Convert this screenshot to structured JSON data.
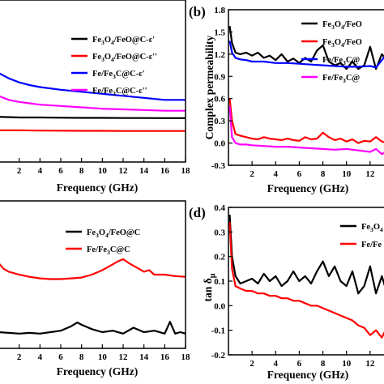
{
  "chart_data": [
    {
      "panel": "a",
      "type": "line",
      "xlabel": "Frequency (GHz)",
      "ylabel": "",
      "xlim": [
        0,
        18
      ],
      "ylim": [
        0,
        12
      ],
      "xticks": [
        2,
        4,
        6,
        8,
        10,
        12,
        14,
        16,
        18
      ],
      "yticks": [],
      "legend_position": "top-right",
      "series": [
        {
          "name": "Fe3O4/FeO@C-ε'",
          "legend": [
            [
              "Fe",
              "n"
            ],
            [
              "3",
              "s"
            ],
            [
              "O",
              "n"
            ],
            [
              "4",
              "s"
            ],
            [
              "/FeO@C-ε'",
              "n"
            ]
          ],
          "color": "#000000",
          "x": [
            0,
            2,
            4,
            6,
            8,
            10,
            12,
            14,
            16,
            18
          ],
          "y": [
            3.35,
            3.3,
            3.3,
            3.28,
            3.27,
            3.27,
            3.26,
            3.26,
            3.25,
            3.25
          ]
        },
        {
          "name": "Fe3O4/FeO@C-ε''",
          "legend": [
            [
              "Fe",
              "n"
            ],
            [
              "3",
              "s"
            ],
            [
              "O",
              "n"
            ],
            [
              "4",
              "s"
            ],
            [
              "/FeO@C-ε''",
              "n"
            ]
          ],
          "color": "#ff0000",
          "x": [
            0,
            2,
            4,
            6,
            8,
            10,
            12,
            14,
            16,
            18
          ],
          "y": [
            2.35,
            2.35,
            2.33,
            2.32,
            2.31,
            2.31,
            2.3,
            2.3,
            2.3,
            2.3
          ]
        },
        {
          "name": "Fe/Fe3C@C-ε'",
          "legend": [
            [
              "Fe/Fe",
              "n"
            ],
            [
              "3",
              "s"
            ],
            [
              "C@C-ε'",
              "n"
            ]
          ],
          "color": "#0000ff",
          "x": [
            0,
            1,
            2,
            3,
            4,
            6,
            8,
            10,
            12,
            14,
            16,
            18
          ],
          "y": [
            6.6,
            6.2,
            5.9,
            5.7,
            5.55,
            5.35,
            5.2,
            5.05,
            4.9,
            4.75,
            4.6,
            4.6
          ]
        },
        {
          "name": "Fe/Fe3C@C-ε''",
          "legend": [
            [
              "Fe/Fe",
              "n"
            ],
            [
              "3",
              "s"
            ],
            [
              "C@C-ε''",
              "n"
            ]
          ],
          "color": "#ff00ff",
          "x": [
            0,
            1,
            2,
            3,
            4,
            6,
            8,
            10,
            12,
            14,
            16,
            18
          ],
          "y": [
            4.9,
            4.6,
            4.45,
            4.35,
            4.25,
            4.15,
            4.05,
            3.95,
            3.9,
            3.85,
            3.8,
            3.8
          ]
        }
      ]
    },
    {
      "panel": "b",
      "letter": "(b)",
      "type": "line",
      "xlabel": "Frequency (GHz)",
      "ylabel": "Complex permeability",
      "xlim": [
        0,
        14
      ],
      "ylim": [
        -0.3,
        1.8
      ],
      "xticks": [
        2,
        4,
        6,
        8,
        10,
        12
      ],
      "yticks": [
        -0.3,
        0.0,
        0.3,
        0.6,
        0.9,
        1.2,
        1.5,
        1.8
      ],
      "ytick_labels": [
        "-0.3",
        "0.0",
        "0.3",
        "0.6",
        "0.9",
        "1.2",
        "1.5",
        "1.8"
      ],
      "legend_position": "top-right",
      "series": [
        {
          "name": "Fe3O4/FeO",
          "legend": [
            [
              "Fe",
              "n"
            ],
            [
              "3",
              "s"
            ],
            [
              "O",
              "n"
            ],
            [
              "4",
              "s"
            ],
            [
              "/FeO",
              "n"
            ]
          ],
          "color": "#000000",
          "x": [
            0.1,
            0.3,
            0.6,
            1,
            1.5,
            2,
            2.5,
            3,
            3.5,
            4,
            4.5,
            5,
            5.5,
            6,
            6.5,
            7,
            7.5,
            8,
            8.5,
            9,
            9.5,
            10,
            10.5,
            11,
            11.5,
            12,
            12.5,
            13,
            13.5,
            14
          ],
          "y": [
            1.58,
            1.35,
            1.22,
            1.2,
            1.22,
            1.18,
            1.22,
            1.15,
            1.18,
            1.12,
            1.2,
            1.1,
            1.14,
            1.08,
            1.15,
            1.1,
            1.25,
            1.32,
            1.1,
            1.05,
            1.08,
            1.0,
            1.1,
            1.0,
            1.05,
            1.3,
            1.0,
            1.2,
            1.1,
            1.05
          ]
        },
        {
          "name": "Fe3O4/FeO",
          "legend": [
            [
              "Fe",
              "n"
            ],
            [
              "3",
              "s"
            ],
            [
              "O",
              "n"
            ],
            [
              "4",
              "s"
            ],
            [
              "/FeO",
              "n"
            ]
          ],
          "color": "#ff0000",
          "x": [
            0.1,
            0.3,
            0.6,
            1,
            1.5,
            2,
            2.5,
            3,
            3.5,
            4,
            4.5,
            5,
            5.5,
            6,
            6.5,
            7,
            7.5,
            8,
            8.5,
            9,
            9.5,
            10,
            10.5,
            11,
            11.5,
            12,
            12.5,
            13,
            13.5,
            14
          ],
          "y": [
            0.6,
            0.3,
            0.12,
            0.1,
            0.08,
            0.06,
            0.05,
            0.08,
            0.06,
            0.05,
            0.04,
            0.06,
            0.04,
            0.03,
            0.08,
            0.05,
            0.06,
            0.14,
            0.08,
            0.04,
            0.06,
            0.02,
            0.05,
            0.0,
            0.03,
            0.02,
            0.08,
            0.02,
            0.0,
            0.02
          ]
        },
        {
          "name": "Fe/Fe3C@",
          "legend": [
            [
              "Fe/Fe",
              "n"
            ],
            [
              "3",
              "s"
            ],
            [
              "C@",
              "n"
            ]
          ],
          "color": "#0000ff",
          "x": [
            0.1,
            0.3,
            0.6,
            1,
            1.5,
            2,
            3,
            4,
            5,
            6,
            7,
            8,
            9,
            10,
            11,
            12,
            12.5,
            13,
            13.5,
            14
          ],
          "y": [
            1.38,
            1.22,
            1.15,
            1.13,
            1.12,
            1.1,
            1.1,
            1.08,
            1.08,
            1.07,
            1.06,
            1.05,
            1.04,
            1.03,
            1.03,
            1.04,
            1.02,
            1.12,
            1.22,
            1.25
          ]
        },
        {
          "name": "Fe/Fe3C@",
          "legend": [
            [
              "Fe/Fe",
              "n"
            ],
            [
              "3",
              "s"
            ],
            [
              "C@",
              "n"
            ]
          ],
          "color": "#ff00ff",
          "x": [
            0.1,
            0.3,
            0.6,
            1,
            1.5,
            2,
            3,
            4,
            5,
            6,
            7,
            8,
            9,
            10,
            11,
            12,
            12.5,
            13,
            13.5,
            14
          ],
          "y": [
            0.5,
            0.08,
            0.0,
            -0.02,
            -0.02,
            -0.03,
            -0.04,
            -0.05,
            -0.05,
            -0.06,
            -0.07,
            -0.08,
            -0.09,
            -0.08,
            -0.1,
            -0.12,
            -0.08,
            -0.15,
            -0.1,
            -0.12
          ]
        }
      ]
    },
    {
      "panel": "c",
      "type": "line",
      "xlabel": "Frequency (GHz)",
      "ylabel": "",
      "xlim": [
        0,
        18
      ],
      "ylim": [
        0,
        10
      ],
      "xticks": [
        2,
        4,
        6,
        8,
        10,
        12,
        14,
        16,
        18
      ],
      "yticks": [],
      "legend_position": "top-right",
      "series": [
        {
          "name": "Fe3O4/FeO@C",
          "legend": [
            [
              "Fe",
              "n"
            ],
            [
              "3",
              "s"
            ],
            [
              "O",
              "n"
            ],
            [
              "4",
              "s"
            ],
            [
              "/FeO@C",
              "n"
            ]
          ],
          "color": "#000000",
          "x": [
            0,
            1,
            2,
            3,
            4,
            5,
            6,
            7,
            7.6,
            8,
            9,
            10,
            11,
            12,
            13,
            14,
            15,
            16,
            16.5,
            17,
            17.5,
            18
          ],
          "y": [
            1.1,
            1.05,
            1.0,
            1.05,
            1.0,
            1.1,
            1.2,
            1.5,
            1.75,
            1.6,
            1.3,
            1.1,
            1.2,
            1.0,
            1.4,
            1.1,
            1.2,
            1.0,
            1.8,
            1.0,
            1.1,
            1.0
          ]
        },
        {
          "name": "Fe/Fe3C@C",
          "legend": [
            [
              "Fe/Fe",
              "n"
            ],
            [
              "3",
              "s"
            ],
            [
              "C@C",
              "n"
            ]
          ],
          "color": "#ff0000",
          "x": [
            0,
            0.5,
            1,
            2,
            3,
            4,
            5,
            6,
            7,
            8,
            9,
            10,
            11,
            11.5,
            12,
            12.5,
            13,
            13.5,
            14,
            14.5,
            15,
            16,
            17,
            18
          ],
          "y": [
            5.8,
            5.4,
            5.2,
            5.0,
            4.85,
            4.75,
            4.7,
            4.7,
            4.75,
            4.8,
            5.0,
            5.3,
            5.7,
            5.9,
            6.05,
            5.8,
            5.6,
            5.4,
            5.2,
            5.3,
            5.0,
            5.0,
            4.9,
            4.85
          ]
        }
      ]
    },
    {
      "panel": "d",
      "letter": "(d)",
      "type": "line",
      "xlabel": "Frequency (GHz)",
      "ylabel": "tan δμ",
      "xlim": [
        0,
        14
      ],
      "ylim": [
        -0.2,
        0.4
      ],
      "xticks": [
        2,
        4,
        6,
        8,
        10,
        12
      ],
      "yticks": [
        -0.2,
        -0.1,
        0.0,
        0.1,
        0.2,
        0.3,
        0.4
      ],
      "ytick_labels": [
        "-0.2",
        "-0.1",
        "0.0",
        "0.1",
        "0.2",
        "0.3",
        "0.4"
      ],
      "legend_position": "top-right",
      "series": [
        {
          "name": "Fe3O4",
          "legend": [
            [
              "Fe",
              "n"
            ],
            [
              "3",
              "s"
            ],
            [
              "O",
              "n"
            ],
            [
              "4",
              "s"
            ]
          ],
          "color": "#000000",
          "x": [
            0.1,
            0.3,
            0.6,
            1,
            1.5,
            2,
            2.5,
            3,
            3.5,
            4,
            4.5,
            5,
            5.5,
            6,
            6.5,
            7,
            7.5,
            8,
            8.5,
            9,
            9.5,
            10,
            10.5,
            11,
            11.5,
            12,
            12.5,
            13,
            13.5,
            14
          ],
          "y": [
            0.37,
            0.2,
            0.12,
            0.09,
            0.1,
            0.11,
            0.09,
            0.13,
            0.1,
            0.12,
            0.08,
            0.1,
            0.14,
            0.1,
            0.12,
            0.09,
            0.14,
            0.18,
            0.12,
            0.16,
            0.1,
            0.08,
            0.14,
            0.05,
            0.08,
            0.16,
            0.05,
            0.12,
            0.04,
            0.1
          ]
        },
        {
          "name": "Fe/Fe",
          "legend": [
            [
              "Fe/Fe",
              "n"
            ]
          ],
          "color": "#ff0000",
          "x": [
            0.1,
            0.3,
            0.6,
            1,
            1.5,
            2,
            2.5,
            3,
            3.5,
            4,
            4.5,
            5,
            5.5,
            6,
            6.5,
            7,
            7.5,
            8,
            8.5,
            9,
            9.5,
            10,
            10.5,
            11,
            11.5,
            12,
            12.5,
            13,
            13.5,
            14
          ],
          "y": [
            0.34,
            0.15,
            0.08,
            0.07,
            0.06,
            0.06,
            0.05,
            0.05,
            0.04,
            0.04,
            0.03,
            0.03,
            0.02,
            0.02,
            0.01,
            0.0,
            0.0,
            -0.01,
            -0.02,
            -0.03,
            -0.04,
            -0.05,
            -0.06,
            -0.08,
            -0.09,
            -0.12,
            -0.1,
            -0.13,
            -0.08,
            -0.1
          ]
        }
      ]
    }
  ]
}
